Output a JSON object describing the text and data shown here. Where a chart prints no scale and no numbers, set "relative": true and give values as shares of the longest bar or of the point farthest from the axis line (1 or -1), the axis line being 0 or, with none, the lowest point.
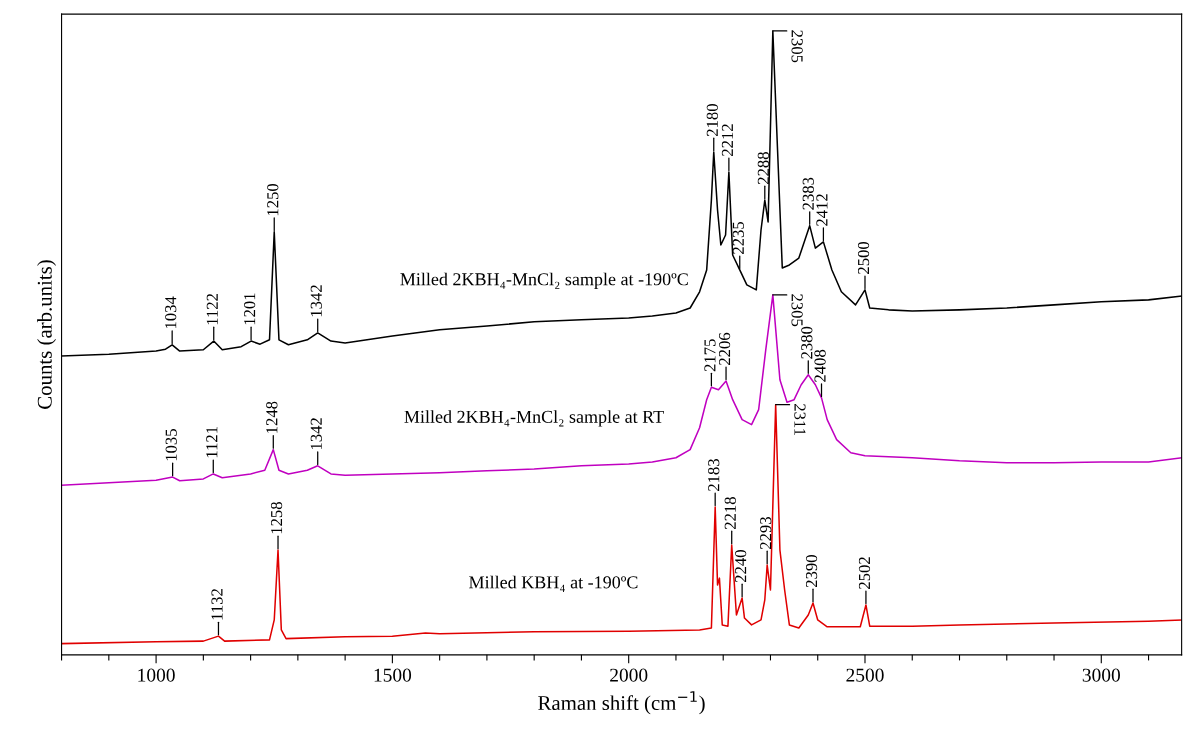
{
  "chart_data": {
    "type": "line",
    "relative": true,
    "xlabel": "Raman shift (cm$^{−1}$)",
    "ylabel": "Counts (arb.units)",
    "xlim": [
      800,
      3170
    ],
    "xticks": [
      {
        "value": 800,
        "label": null
      },
      {
        "value": 900,
        "label": null
      },
      1000,
      {
        "value": 1100,
        "label": null
      },
      {
        "value": 1200,
        "label": null
      },
      {
        "value": 1300,
        "label": null
      },
      {
        "value": 1400,
        "label": null
      },
      1500,
      {
        "value": 1600,
        "label": null
      },
      {
        "value": 1700,
        "label": null
      },
      {
        "value": 1800,
        "label": null
      },
      {
        "value": 1900,
        "label": null
      },
      2000,
      {
        "value": 2100,
        "label": null
      },
      {
        "value": 2200,
        "label": null
      },
      {
        "value": 2300,
        "label": null
      },
      {
        "value": 2400,
        "label": null
      },
      2500,
      {
        "value": 2600,
        "label": null
      },
      {
        "value": 2700,
        "label": null
      },
      {
        "value": 2800,
        "label": null
      },
      {
        "value": 2900,
        "label": null
      },
      3000,
      {
        "value": 3100,
        "label": null
      }
    ],
    "tick_labels": "x",
    "grid": false,
    "legend": false,
    "marker": "none",
    "line_style": "solid",
    "series": [
      {
        "name": "Milled 2KBH₄-MnCl₂ sample at -190ºC",
        "color": "#000000",
        "x": [
          800,
          900,
          1000,
          1020,
          1034,
          1050,
          1100,
          1122,
          1140,
          1180,
          1201,
          1220,
          1240,
          1250,
          1260,
          1280,
          1320,
          1342,
          1370,
          1400,
          1500,
          1600,
          1700,
          1800,
          1900,
          2000,
          2050,
          2100,
          2130,
          2150,
          2165,
          2175,
          2180,
          2188,
          2195,
          2205,
          2212,
          2220,
          2235,
          2250,
          2270,
          2280,
          2288,
          2295,
          2305,
          2315,
          2325,
          2340,
          2360,
          2383,
          2395,
          2412,
          2430,
          2450,
          2480,
          2500,
          2510,
          2550,
          2600,
          2700,
          2800,
          2900,
          3000,
          3100,
          3170
        ],
        "values": [
          0.479,
          0.482,
          0.487,
          0.49,
          0.497,
          0.487,
          0.489,
          0.503,
          0.489,
          0.494,
          0.503,
          0.498,
          0.505,
          0.678,
          0.505,
          0.497,
          0.505,
          0.516,
          0.503,
          0.5,
          0.511,
          0.521,
          0.527,
          0.534,
          0.537,
          0.54,
          0.543,
          0.548,
          0.556,
          0.582,
          0.617,
          0.729,
          0.806,
          0.713,
          0.657,
          0.673,
          0.774,
          0.641,
          0.617,
          0.593,
          0.585,
          0.681,
          0.729,
          0.694,
          1.0,
          0.809,
          0.62,
          0.625,
          0.636,
          0.688,
          0.652,
          0.662,
          0.617,
          0.582,
          0.561,
          0.585,
          0.556,
          0.553,
          0.551,
          0.553,
          0.556,
          0.561,
          0.566,
          0.569,
          0.575
        ]
      },
      {
        "name": "Milled 2KBH₄-MnCl₂ sample at RT",
        "color": "#c000c0",
        "x": [
          800,
          900,
          1000,
          1035,
          1050,
          1100,
          1121,
          1140,
          1200,
          1230,
          1248,
          1260,
          1280,
          1320,
          1342,
          1370,
          1400,
          1500,
          1600,
          1700,
          1800,
          1900,
          2000,
          2050,
          2100,
          2130,
          2150,
          2165,
          2175,
          2190,
          2206,
          2220,
          2240,
          2260,
          2275,
          2290,
          2305,
          2320,
          2335,
          2350,
          2365,
          2380,
          2395,
          2408,
          2420,
          2440,
          2470,
          2500,
          2600,
          2700,
          2800,
          2900,
          3000,
          3100,
          3170
        ],
        "values": [
          0.272,
          0.276,
          0.28,
          0.285,
          0.279,
          0.282,
          0.29,
          0.284,
          0.29,
          0.296,
          0.329,
          0.296,
          0.29,
          0.296,
          0.303,
          0.29,
          0.288,
          0.29,
          0.292,
          0.295,
          0.298,
          0.303,
          0.306,
          0.309,
          0.316,
          0.329,
          0.364,
          0.409,
          0.429,
          0.425,
          0.439,
          0.409,
          0.377,
          0.369,
          0.393,
          0.489,
          0.577,
          0.441,
          0.405,
          0.409,
          0.433,
          0.449,
          0.433,
          0.412,
          0.377,
          0.345,
          0.324,
          0.319,
          0.316,
          0.311,
          0.308,
          0.308,
          0.309,
          0.309,
          0.316
        ]
      },
      {
        "name": "Milled KBH₄ at -190ºC",
        "color": "#e00000",
        "x": [
          800,
          1000,
          1100,
          1132,
          1145,
          1240,
          1250,
          1258,
          1265,
          1275,
          1400,
          1500,
          1570,
          1600,
          1800,
          2000,
          2150,
          2175,
          2183,
          2188,
          2192,
          2198,
          2210,
          2218,
          2228,
          2235,
          2240,
          2245,
          2260,
          2280,
          2288,
          2293,
          2300,
          2311,
          2320,
          2330,
          2340,
          2360,
          2380,
          2390,
          2400,
          2420,
          2490,
          2502,
          2510,
          2600,
          2700,
          2900,
          3100,
          3170
        ],
        "values": [
          0.018,
          0.021,
          0.022,
          0.03,
          0.022,
          0.024,
          0.056,
          0.168,
          0.04,
          0.026,
          0.029,
          0.03,
          0.035,
          0.034,
          0.037,
          0.038,
          0.04,
          0.043,
          0.237,
          0.112,
          0.123,
          0.048,
          0.046,
          0.176,
          0.064,
          0.08,
          0.091,
          0.059,
          0.048,
          0.056,
          0.088,
          0.144,
          0.104,
          0.401,
          0.168,
          0.104,
          0.048,
          0.043,
          0.064,
          0.083,
          0.056,
          0.045,
          0.045,
          0.08,
          0.046,
          0.046,
          0.048,
          0.051,
          0.054,
          0.056
        ]
      }
    ],
    "annotations": [
      {
        "text": "1034",
        "x": 1034,
        "y": 0.497
      },
      {
        "text": "1122",
        "x": 1122,
        "y": 0.503
      },
      {
        "text": "1201",
        "x": 1201,
        "y": 0.503
      },
      {
        "text": "1250",
        "x": 1250,
        "y": 0.678
      },
      {
        "text": "1342",
        "x": 1342,
        "y": 0.516
      },
      {
        "text": "2180",
        "x": 2180,
        "y": 0.806
      },
      {
        "text": "2212",
        "x": 2212,
        "y": 0.774
      },
      {
        "text": "2235",
        "x": 2235,
        "y": 0.617
      },
      {
        "text": "2288",
        "x": 2288,
        "y": 0.729
      },
      {
        "text": "2305",
        "x": 2305,
        "y": 1.0
      },
      {
        "text": "2383",
        "x": 2383,
        "y": 0.688
      },
      {
        "text": "2412",
        "x": 2412,
        "y": 0.662
      },
      {
        "text": "2500",
        "x": 2500,
        "y": 0.585
      },
      {
        "text": "1035",
        "x": 1035,
        "y": 0.285
      },
      {
        "text": "1121",
        "x": 1121,
        "y": 0.29
      },
      {
        "text": "1248",
        "x": 1248,
        "y": 0.329
      },
      {
        "text": "1342",
        "x": 1342,
        "y": 0.303
      },
      {
        "text": "2175",
        "x": 2175,
        "y": 0.429
      },
      {
        "text": "2206",
        "x": 2206,
        "y": 0.439
      },
      {
        "text": "2305",
        "x": 2305,
        "y": 0.577
      },
      {
        "text": "2380",
        "x": 2380,
        "y": 0.449
      },
      {
        "text": "2408",
        "x": 2408,
        "y": 0.412
      },
      {
        "text": "1132",
        "x": 1132,
        "y": 0.03
      },
      {
        "text": "1258",
        "x": 1258,
        "y": 0.168
      },
      {
        "text": "2183",
        "x": 2183,
        "y": 0.237
      },
      {
        "text": "2218",
        "x": 2218,
        "y": 0.176
      },
      {
        "text": "2240",
        "x": 2240,
        "y": 0.091
      },
      {
        "text": "2293",
        "x": 2293,
        "y": 0.144
      },
      {
        "text": "2311",
        "x": 2311,
        "y": 0.401
      },
      {
        "text": "2390",
        "x": 2390,
        "y": 0.083
      },
      {
        "text": "2502",
        "x": 2502,
        "y": 0.08
      }
    ]
  }
}
